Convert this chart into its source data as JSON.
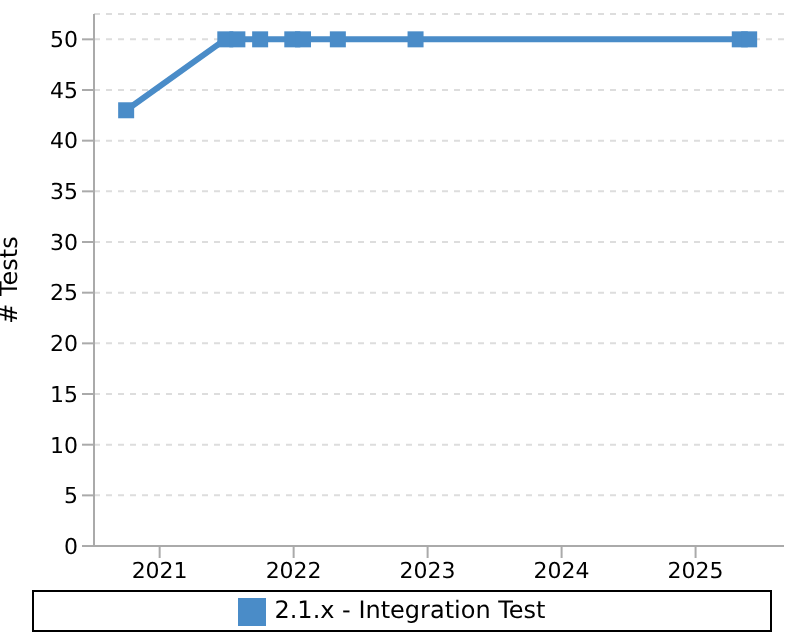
{
  "chart_data": {
    "type": "line",
    "ylabel": "# Tests",
    "x": [
      2020.75,
      2021.49,
      2021.58,
      2021.75,
      2021.99,
      2022.07,
      2022.33,
      2022.91,
      2025.33,
      2025.4
    ],
    "series": [
      {
        "name": "2.1.x - Integration Test",
        "color": "#4a8cc8",
        "values": [
          43,
          50,
          50,
          50,
          50,
          50,
          50,
          50,
          50,
          50
        ]
      }
    ],
    "xlim": [
      2020.51,
      2025.66
    ],
    "xticks": [
      2021,
      2022,
      2023,
      2024,
      2025
    ],
    "ylim": [
      0,
      52.5
    ],
    "yticks": [
      0,
      5,
      10,
      15,
      20,
      25,
      30,
      35,
      40,
      45,
      50
    ],
    "grid": "y",
    "legend": "bottom",
    "marker": "square",
    "line_style": "solid"
  }
}
